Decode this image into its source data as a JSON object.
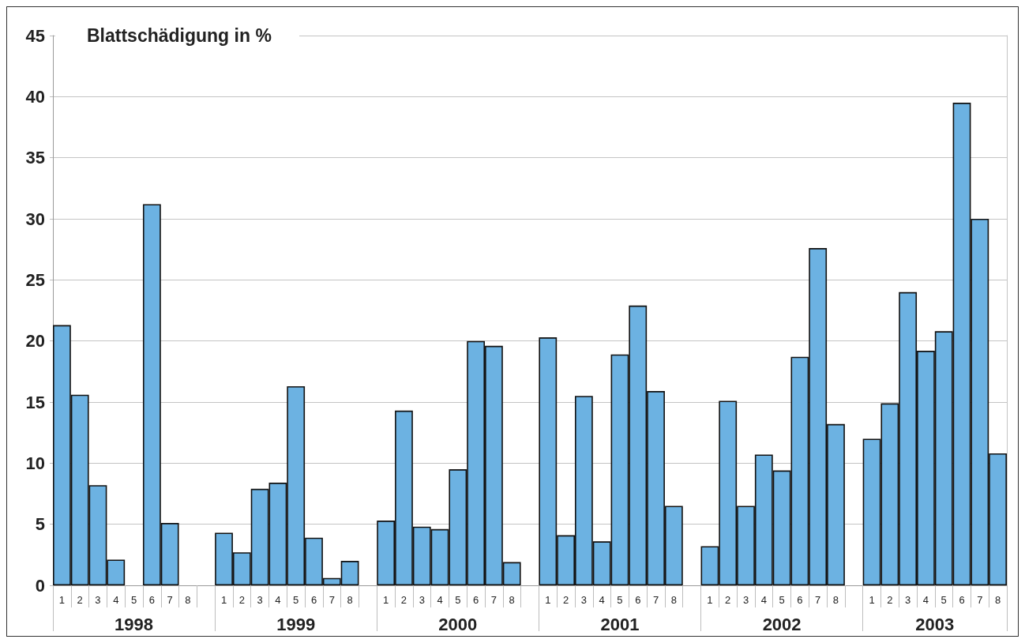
{
  "chart_data": {
    "type": "bar",
    "title": "Blattschädigung in %",
    "categories": [
      "1",
      "2",
      "3",
      "4",
      "5",
      "6",
      "7",
      "8",
      null,
      "1",
      "2",
      "3",
      "4",
      "5",
      "6",
      "7",
      "8",
      null,
      "1",
      "2",
      "3",
      "4",
      "5",
      "6",
      "7",
      "8",
      null,
      "1",
      "2",
      "3",
      "4",
      "5",
      "6",
      "7",
      "8",
      null,
      "1",
      "2",
      "3",
      "4",
      "5",
      "6",
      "7",
      "8",
      null,
      "1",
      "2",
      "3",
      "4",
      "5",
      "6",
      "7",
      "8"
    ],
    "values": [
      21.3,
      15.6,
      8.2,
      2.1,
      null,
      31.2,
      5.1,
      null,
      null,
      4.3,
      2.7,
      7.9,
      8.4,
      16.3,
      3.9,
      0.6,
      2.0,
      null,
      5.3,
      14.3,
      4.8,
      4.6,
      9.5,
      20.0,
      19.6,
      1.9,
      null,
      20.3,
      4.1,
      15.5,
      3.6,
      18.9,
      22.9,
      15.9,
      6.5,
      null,
      3.2,
      15.1,
      6.5,
      10.7,
      9.4,
      18.7,
      27.6,
      13.2,
      null,
      12.0,
      14.9,
      24.0,
      19.2,
      20.8,
      39.5,
      30.0,
      10.8
    ],
    "color": "#6cb2e2",
    "ylim": [
      0,
      45
    ],
    "yticks": [
      0,
      5,
      10,
      15,
      20,
      25,
      30,
      35,
      40,
      45
    ],
    "grid": "y",
    "annotations": [
      "1998",
      "1999",
      "2000",
      "2001",
      "2002",
      "2003"
    ]
  }
}
